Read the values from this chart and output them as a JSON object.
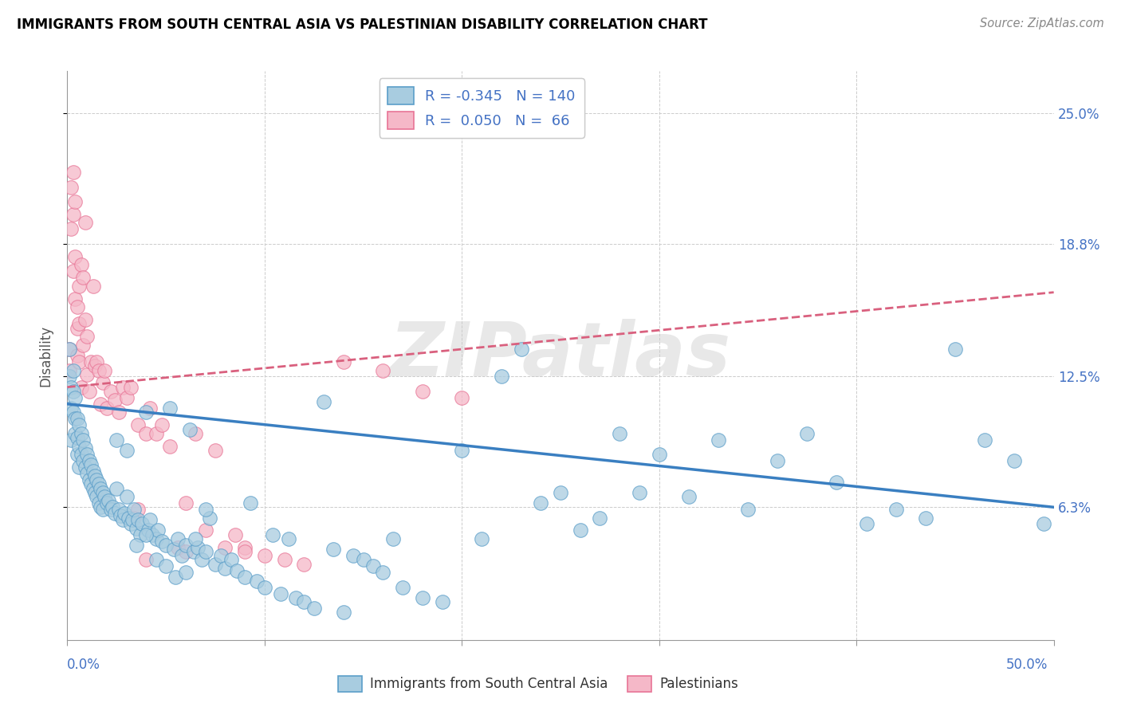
{
  "title": "IMMIGRANTS FROM SOUTH CENTRAL ASIA VS PALESTINIAN DISABILITY CORRELATION CHART",
  "source": "Source: ZipAtlas.com",
  "ylabel": "Disability",
  "y_tick_labels": [
    "6.3%",
    "12.5%",
    "18.8%",
    "25.0%"
  ],
  "y_tick_values": [
    0.063,
    0.125,
    0.188,
    0.25
  ],
  "x_tick_values": [
    0.0,
    0.1,
    0.2,
    0.3,
    0.4,
    0.5
  ],
  "x_min": 0.0,
  "x_max": 0.5,
  "y_min": 0.0,
  "y_max": 0.27,
  "blue_R": -0.345,
  "blue_N": 140,
  "pink_R": 0.05,
  "pink_N": 66,
  "blue_color": "#a8cce0",
  "pink_color": "#f5b8c8",
  "blue_edge_color": "#5b9ec9",
  "pink_edge_color": "#e87496",
  "blue_line_color": "#3a7fc1",
  "pink_line_color": "#d9607e",
  "legend_label_blue": "Immigrants from South Central Asia",
  "legend_label_pink": "Palestinians",
  "watermark": "ZIPatlas",
  "blue_line_x0": 0.0,
  "blue_line_y0": 0.112,
  "blue_line_x1": 0.5,
  "blue_line_y1": 0.063,
  "pink_line_x0": 0.0,
  "pink_line_y0": 0.12,
  "pink_line_x1": 0.2,
  "pink_line_y1": 0.138,
  "blue_scatter_x": [
    0.001,
    0.001,
    0.002,
    0.002,
    0.002,
    0.003,
    0.003,
    0.003,
    0.004,
    0.004,
    0.004,
    0.005,
    0.005,
    0.005,
    0.006,
    0.006,
    0.006,
    0.007,
    0.007,
    0.008,
    0.008,
    0.009,
    0.009,
    0.01,
    0.01,
    0.011,
    0.011,
    0.012,
    0.012,
    0.013,
    0.013,
    0.014,
    0.014,
    0.015,
    0.015,
    0.016,
    0.016,
    0.017,
    0.017,
    0.018,
    0.018,
    0.019,
    0.02,
    0.021,
    0.022,
    0.023,
    0.024,
    0.025,
    0.026,
    0.027,
    0.028,
    0.029,
    0.03,
    0.031,
    0.032,
    0.033,
    0.034,
    0.035,
    0.036,
    0.037,
    0.038,
    0.04,
    0.041,
    0.042,
    0.043,
    0.045,
    0.046,
    0.048,
    0.05,
    0.052,
    0.054,
    0.056,
    0.058,
    0.06,
    0.062,
    0.064,
    0.066,
    0.068,
    0.07,
    0.072,
    0.075,
    0.078,
    0.08,
    0.083,
    0.086,
    0.09,
    0.093,
    0.096,
    0.1,
    0.104,
    0.108,
    0.112,
    0.116,
    0.12,
    0.125,
    0.13,
    0.135,
    0.14,
    0.145,
    0.15,
    0.155,
    0.16,
    0.165,
    0.17,
    0.18,
    0.19,
    0.2,
    0.21,
    0.22,
    0.23,
    0.24,
    0.25,
    0.26,
    0.27,
    0.28,
    0.29,
    0.3,
    0.315,
    0.33,
    0.345,
    0.36,
    0.375,
    0.39,
    0.405,
    0.42,
    0.435,
    0.45,
    0.465,
    0.48,
    0.495,
    0.025,
    0.03,
    0.035,
    0.04,
    0.045,
    0.05,
    0.055,
    0.06,
    0.065,
    0.07
  ],
  "blue_scatter_y": [
    0.138,
    0.125,
    0.12,
    0.11,
    0.095,
    0.128,
    0.118,
    0.108,
    0.115,
    0.105,
    0.098,
    0.105,
    0.096,
    0.088,
    0.102,
    0.092,
    0.082,
    0.098,
    0.088,
    0.095,
    0.085,
    0.091,
    0.082,
    0.088,
    0.079,
    0.085,
    0.076,
    0.083,
    0.074,
    0.08,
    0.072,
    0.078,
    0.07,
    0.076,
    0.068,
    0.074,
    0.065,
    0.072,
    0.063,
    0.07,
    0.062,
    0.068,
    0.065,
    0.066,
    0.062,
    0.063,
    0.06,
    0.095,
    0.062,
    0.059,
    0.057,
    0.06,
    0.09,
    0.058,
    0.055,
    0.057,
    0.062,
    0.053,
    0.057,
    0.05,
    0.055,
    0.108,
    0.052,
    0.057,
    0.05,
    0.048,
    0.052,
    0.047,
    0.045,
    0.11,
    0.043,
    0.048,
    0.04,
    0.045,
    0.1,
    0.042,
    0.044,
    0.038,
    0.042,
    0.058,
    0.036,
    0.04,
    0.034,
    0.038,
    0.033,
    0.03,
    0.065,
    0.028,
    0.025,
    0.05,
    0.022,
    0.048,
    0.02,
    0.018,
    0.015,
    0.113,
    0.043,
    0.013,
    0.04,
    0.038,
    0.035,
    0.032,
    0.048,
    0.025,
    0.02,
    0.018,
    0.09,
    0.048,
    0.125,
    0.138,
    0.065,
    0.07,
    0.052,
    0.058,
    0.098,
    0.07,
    0.088,
    0.068,
    0.095,
    0.062,
    0.085,
    0.098,
    0.075,
    0.055,
    0.062,
    0.058,
    0.138,
    0.095,
    0.085,
    0.055,
    0.072,
    0.068,
    0.045,
    0.05,
    0.038,
    0.035,
    0.03,
    0.032,
    0.048,
    0.062
  ],
  "pink_scatter_x": [
    0.001,
    0.001,
    0.002,
    0.002,
    0.003,
    0.003,
    0.003,
    0.004,
    0.004,
    0.004,
    0.005,
    0.005,
    0.005,
    0.006,
    0.006,
    0.006,
    0.007,
    0.007,
    0.008,
    0.008,
    0.009,
    0.009,
    0.01,
    0.01,
    0.011,
    0.012,
    0.013,
    0.014,
    0.015,
    0.016,
    0.017,
    0.018,
    0.019,
    0.02,
    0.022,
    0.024,
    0.026,
    0.028,
    0.03,
    0.032,
    0.034,
    0.036,
    0.04,
    0.042,
    0.045,
    0.048,
    0.052,
    0.056,
    0.06,
    0.065,
    0.07,
    0.075,
    0.08,
    0.085,
    0.09,
    0.1,
    0.11,
    0.12,
    0.14,
    0.16,
    0.18,
    0.2,
    0.036,
    0.04,
    0.06,
    0.09
  ],
  "pink_scatter_y": [
    0.138,
    0.128,
    0.195,
    0.215,
    0.175,
    0.222,
    0.202,
    0.162,
    0.182,
    0.208,
    0.135,
    0.148,
    0.158,
    0.132,
    0.15,
    0.168,
    0.178,
    0.12,
    0.172,
    0.14,
    0.152,
    0.198,
    0.126,
    0.144,
    0.118,
    0.132,
    0.168,
    0.13,
    0.132,
    0.128,
    0.112,
    0.122,
    0.128,
    0.11,
    0.118,
    0.114,
    0.108,
    0.12,
    0.115,
    0.12,
    0.058,
    0.102,
    0.098,
    0.11,
    0.098,
    0.102,
    0.092,
    0.044,
    0.065,
    0.098,
    0.052,
    0.09,
    0.044,
    0.05,
    0.044,
    0.04,
    0.038,
    0.036,
    0.132,
    0.128,
    0.118,
    0.115,
    0.062,
    0.038,
    0.042,
    0.042
  ]
}
